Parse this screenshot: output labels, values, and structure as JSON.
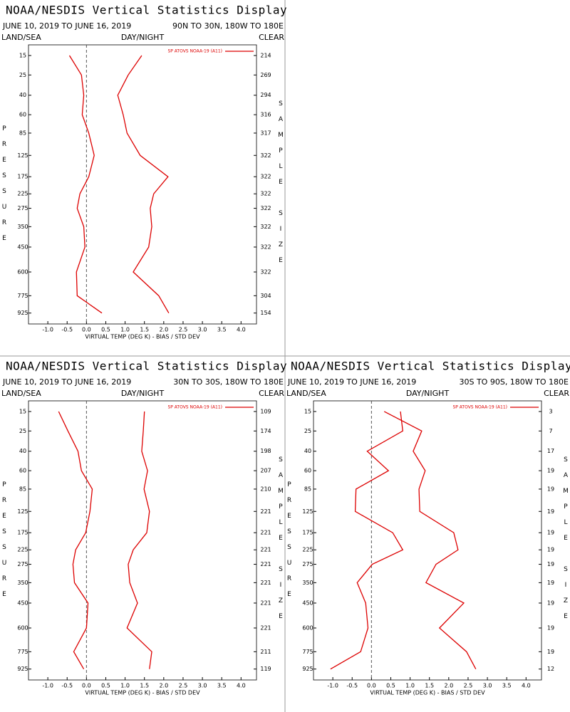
{
  "chart_data": [
    {
      "type": "line",
      "title": "NOAA/NESDIS Vertical Statistics Display",
      "subtitle": "JUNE 10, 2019 TO JUNE 16, 2019",
      "region": "90N TO 30N, 180W TO 180E",
      "left_label": "LAND/SEA",
      "center_label": "DAY/NIGHT",
      "right_label": "CLEAR",
      "y_label": "PRESSURE",
      "y2_label": "SAMPLE SIZE",
      "x_label": "VIRTUAL TEMP (DEG K) - BIAS / STD DEV",
      "y": [
        15,
        25,
        40,
        60,
        85,
        125,
        175,
        225,
        275,
        350,
        450,
        600,
        775,
        925
      ],
      "sample_sizes": [
        214,
        269,
        294,
        316,
        317,
        322,
        322,
        322,
        322,
        322,
        322,
        322,
        304,
        154
      ],
      "series": [
        {
          "name": "SP ATOVS NOAA-19 (A11)",
          "color": "#dd0000",
          "values": [
            -0.44,
            -0.13,
            -0.07,
            -0.11,
            0.06,
            0.2,
            0.06,
            -0.17,
            -0.24,
            -0.07,
            -0.04,
            -0.26,
            -0.24,
            0.4
          ]
        },
        {
          "color": "#dd0000",
          "values": [
            1.43,
            1.08,
            0.81,
            0.95,
            1.05,
            1.39,
            2.11,
            1.74,
            1.65,
            1.69,
            1.61,
            1.21,
            1.87,
            2.13
          ]
        }
      ],
      "xlim": [
        -1.5,
        4.4
      ],
      "ylim": [
        11,
        1030
      ],
      "xticks": [
        {
          "value": -1,
          "label": "-1.0"
        },
        -0.5,
        {
          "value": 0,
          "label": "0.0"
        },
        0.5,
        {
          "value": 1,
          "label": "1.0"
        },
        1.5,
        {
          "value": 2,
          "label": "2.0"
        },
        2.5,
        {
          "value": 3,
          "label": "3.0"
        },
        3.5,
        {
          "value": 4,
          "label": "4.0"
        }
      ]
    },
    {
      "type": "line",
      "title": "NOAA/NESDIS Vertical Statistics Display",
      "subtitle": "JUNE 10, 2019 TO JUNE 16, 2019",
      "region": "30N TO 30S, 180W TO 180E",
      "left_label": "LAND/SEA",
      "center_label": "DAY/NIGHT",
      "right_label": "CLEAR",
      "y_label": "PRESSURE",
      "y2_label": "SAMPLE SIZE",
      "x_label": "VIRTUAL TEMP (DEG K) - BIAS / STD DEV",
      "y": [
        15,
        25,
        40,
        60,
        85,
        125,
        175,
        225,
        275,
        350,
        450,
        600,
        775,
        925
      ],
      "sample_sizes": [
        109,
        174,
        198,
        207,
        210,
        221,
        221,
        221,
        221,
        221,
        221,
        221,
        211,
        119
      ],
      "series": [
        {
          "name": "SP ATOVS NOAA-19 (A11)",
          "color": "#dd0000",
          "values": [
            -0.72,
            -0.48,
            -0.22,
            -0.13,
            0.15,
            0.09,
            -0.02,
            -0.28,
            -0.35,
            -0.31,
            0.04,
            0,
            -0.33,
            -0.07
          ]
        },
        {
          "color": "#dd0000",
          "values": [
            1.5,
            1.47,
            1.43,
            1.58,
            1.49,
            1.63,
            1.56,
            1.21,
            1.08,
            1.12,
            1.32,
            1.05,
            1.69,
            1.63
          ]
        }
      ],
      "xlim": [
        -1.5,
        4.4
      ],
      "ylim": [
        11,
        1030
      ],
      "xticks": [
        {
          "value": -1,
          "label": "-1.0"
        },
        -0.5,
        {
          "value": 0,
          "label": "0.0"
        },
        0.5,
        {
          "value": 1,
          "label": "1.0"
        },
        1.5,
        {
          "value": 2,
          "label": "2.0"
        },
        2.5,
        {
          "value": 3,
          "label": "3.0"
        },
        3.5,
        {
          "value": 4,
          "label": "4.0"
        }
      ]
    },
    {
      "type": "line",
      "title": "NOAA/NESDIS Vertical Statistics Display",
      "subtitle": "JUNE 10, 2019 TO JUNE 16, 2019",
      "region": "30S TO 90S, 180W TO 180E",
      "left_label": "LAND/SEA",
      "center_label": "DAY/NIGHT",
      "right_label": "CLEAR",
      "y_label": "PRESSURE",
      "y2_label": "SAMPLE SIZE",
      "x_label": "VIRTUAL TEMP (DEG K) - BIAS / STD DEV",
      "y": [
        15,
        25,
        40,
        60,
        85,
        125,
        175,
        225,
        275,
        350,
        450,
        600,
        775,
        925
      ],
      "sample_sizes": [
        3,
        7,
        17,
        19,
        19,
        19,
        19,
        19,
        19,
        19,
        19,
        19,
        19,
        12
      ],
      "series": [
        {
          "name": "SP ATOVS NOAA-19 (A11)",
          "color": "#dd0000",
          "values": [
            0.75,
            0.81,
            -0.11,
            0.44,
            -0.4,
            -0.42,
            0.55,
            0.81,
            0.02,
            -0.37,
            -0.15,
            -0.09,
            -0.28,
            -1.06
          ]
        },
        {
          "color": "#dd0000",
          "values": [
            0.33,
            1.3,
            1.08,
            1.39,
            1.23,
            1.25,
            2.13,
            2.24,
            1.67,
            1.41,
            2.39,
            1.76,
            2.46,
            2.7
          ]
        }
      ],
      "xlim": [
        -1.5,
        4.4
      ],
      "ylim": [
        11,
        1030
      ],
      "xticks": [
        {
          "value": -1,
          "label": "-1.0"
        },
        -0.5,
        {
          "value": 0,
          "label": "0.0"
        },
        0.5,
        {
          "value": 1,
          "label": "1.0"
        },
        1.5,
        {
          "value": 2,
          "label": "2.0"
        },
        2.5,
        {
          "value": 3,
          "label": "3.0"
        },
        3.5,
        {
          "value": 4,
          "label": "4.0"
        }
      ]
    }
  ]
}
